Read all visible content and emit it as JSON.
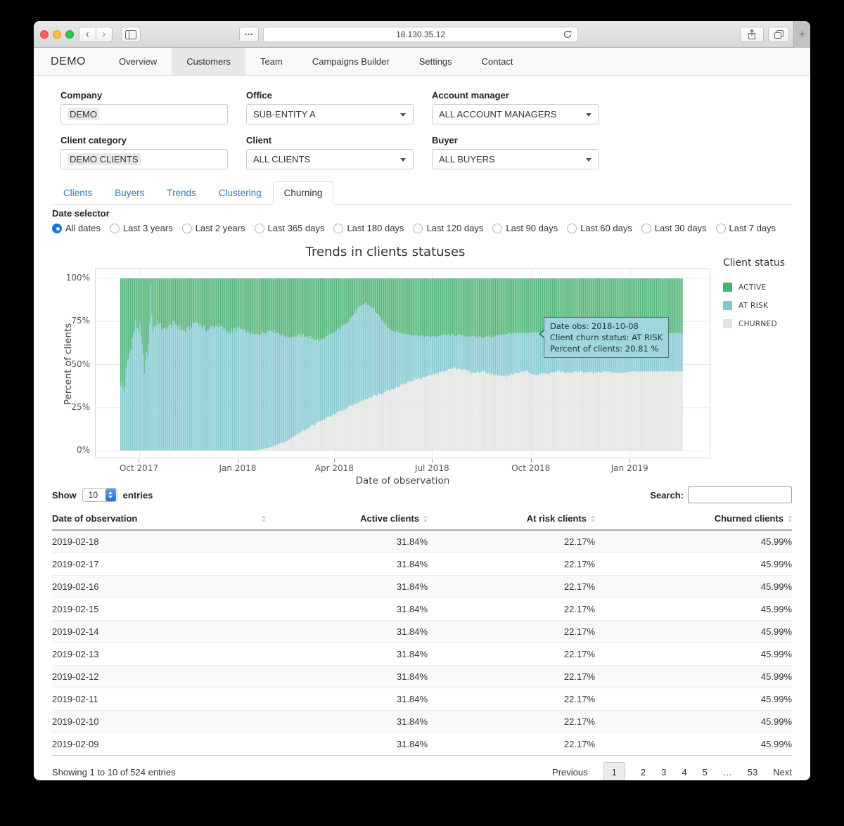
{
  "browser": {
    "url": "18.130.35.12",
    "new_tab_label": "+",
    "dots_label": "•••"
  },
  "nav": {
    "brand": "DEMO",
    "items": [
      {
        "label": "Overview",
        "active": false
      },
      {
        "label": "Customers",
        "active": true
      },
      {
        "label": "Team",
        "active": false
      },
      {
        "label": "Campaigns Builder",
        "active": false
      },
      {
        "label": "Settings",
        "active": false
      },
      {
        "label": "Contact",
        "active": false
      }
    ]
  },
  "filters": [
    {
      "label": "Company",
      "value": "DEMO",
      "type": "text",
      "highlight": true
    },
    {
      "label": "Office",
      "value": "SUB-ENTITY A",
      "type": "select"
    },
    {
      "label": "Account manager",
      "value": "ALL ACCOUNT MANAGERS",
      "type": "select"
    },
    {
      "label": "Client category",
      "value": "DEMO CLIENTS",
      "type": "text",
      "highlight": true
    },
    {
      "label": "Client",
      "value": "ALL CLIENTS",
      "type": "select"
    },
    {
      "label": "Buyer",
      "value": "ALL BUYERS",
      "type": "select"
    }
  ],
  "subtabs": [
    {
      "label": "Clients",
      "active": false
    },
    {
      "label": "Buyers",
      "active": false
    },
    {
      "label": "Trends",
      "active": false
    },
    {
      "label": "Clustering",
      "active": false
    },
    {
      "label": "Churning",
      "active": true
    }
  ],
  "date_selector": {
    "label": "Date selector",
    "selected": "All dates",
    "options": [
      "All dates",
      "Last 3 years",
      "Last 2 years",
      "Last 365 days",
      "Last 180 days",
      "Last 120 days",
      "Last 90 days",
      "Last 60 days",
      "Last 30 days",
      "Last 7 days"
    ]
  },
  "chart_data": {
    "type": "stacked-bar-100",
    "title": "Trends in clients statuses",
    "xlabel": "Date of observation",
    "ylabel": "Percent of clients",
    "y_ticks": [
      "0%",
      "25%",
      "50%",
      "75%",
      "100%"
    ],
    "x_ticks": [
      "Oct 2017",
      "Jan 2018",
      "Apr 2018",
      "Jul 2018",
      "Oct 2018",
      "Jan 2019"
    ],
    "x_tick_days": [
      18,
      110,
      200,
      291,
      383,
      475
    ],
    "n_days": 524,
    "date_range": [
      "2017-09-13",
      "2019-02-18"
    ],
    "series_order_bottom_to_top": [
      "CHURNED",
      "AT RISK",
      "ACTIVE"
    ],
    "colors": {
      "active": "#4fb477",
      "at_risk": "#85c9d1",
      "churned": "#e4e4e2",
      "grid": "#ececec"
    },
    "churned_top_keypoints": [
      [
        0,
        0
      ],
      [
        125,
        0
      ],
      [
        140,
        2
      ],
      [
        155,
        6
      ],
      [
        168,
        11
      ],
      [
        180,
        15
      ],
      [
        192,
        19
      ],
      [
        205,
        23
      ],
      [
        218,
        27
      ],
      [
        232,
        31
      ],
      [
        245,
        34
      ],
      [
        258,
        37
      ],
      [
        272,
        41
      ],
      [
        285,
        43
      ],
      [
        295,
        45
      ],
      [
        305,
        47
      ],
      [
        312,
        48
      ],
      [
        320,
        47
      ],
      [
        328,
        45
      ],
      [
        338,
        46
      ],
      [
        348,
        44
      ],
      [
        358,
        43
      ],
      [
        368,
        45
      ],
      [
        378,
        46
      ],
      [
        388,
        44
      ],
      [
        398,
        45
      ],
      [
        408,
        46
      ],
      [
        418,
        45
      ],
      [
        428,
        46
      ],
      [
        440,
        45
      ],
      [
        452,
        46
      ],
      [
        464,
        45
      ],
      [
        478,
        46
      ],
      [
        523,
        45.99
      ]
    ],
    "atrisk_top_keypoints": [
      [
        0,
        40
      ],
      [
        3,
        34
      ],
      [
        6,
        50
      ],
      [
        10,
        62
      ],
      [
        14,
        73
      ],
      [
        18,
        70
      ],
      [
        22,
        48
      ],
      [
        26,
        60
      ],
      [
        28,
        93
      ],
      [
        30,
        70
      ],
      [
        34,
        75
      ],
      [
        40,
        70
      ],
      [
        50,
        74
      ],
      [
        60,
        69
      ],
      [
        70,
        75
      ],
      [
        80,
        70
      ],
      [
        90,
        73
      ],
      [
        100,
        69
      ],
      [
        110,
        71
      ],
      [
        125,
        67
      ],
      [
        140,
        70
      ],
      [
        155,
        66
      ],
      [
        170,
        67
      ],
      [
        185,
        64
      ],
      [
        198,
        68
      ],
      [
        208,
        73
      ],
      [
        218,
        80
      ],
      [
        228,
        86
      ],
      [
        236,
        82
      ],
      [
        244,
        75
      ],
      [
        252,
        70
      ],
      [
        262,
        68
      ],
      [
        275,
        67
      ],
      [
        288,
        66
      ],
      [
        300,
        67
      ],
      [
        315,
        67
      ],
      [
        330,
        66
      ],
      [
        345,
        66
      ],
      [
        360,
        68
      ],
      [
        375,
        68
      ],
      [
        390,
        69
      ],
      [
        405,
        68
      ],
      [
        420,
        68
      ],
      [
        435,
        69
      ],
      [
        450,
        68
      ],
      [
        465,
        68
      ],
      [
        480,
        68
      ],
      [
        504,
        68
      ],
      [
        505,
        55
      ],
      [
        506,
        68
      ],
      [
        523,
        68.16
      ]
    ],
    "final_values": {
      "active": 31.84,
      "at_risk": 22.17,
      "churned": 45.99
    }
  },
  "tooltip": {
    "lines": [
      "Date obs: 2018-10-08",
      "Client churn status: AT RISK",
      "Percent of clients: 20.81 %"
    ]
  },
  "legend": {
    "title": "Client status",
    "items": [
      {
        "label": "ACTIVE",
        "color": "#43b272"
      },
      {
        "label": "AT RISK",
        "color": "#7fc8d1"
      },
      {
        "label": "CHURNED",
        "color": "#e2e2e0"
      }
    ]
  },
  "controls": {
    "show_label": "Show",
    "page_size": "10",
    "entries_label": "entries",
    "search_label": "Search:",
    "search_value": ""
  },
  "table": {
    "columns": [
      {
        "label": "Date of observation",
        "align": "left"
      },
      {
        "label": "Active clients",
        "align": "right"
      },
      {
        "label": "At risk clients",
        "align": "right"
      },
      {
        "label": "Churned clients",
        "align": "right"
      }
    ],
    "rows": [
      [
        "2019-02-18",
        "31.84%",
        "22.17%",
        "45.99%"
      ],
      [
        "2019-02-17",
        "31.84%",
        "22.17%",
        "45.99%"
      ],
      [
        "2019-02-16",
        "31.84%",
        "22.17%",
        "45.99%"
      ],
      [
        "2019-02-15",
        "31.84%",
        "22.17%",
        "45.99%"
      ],
      [
        "2019-02-14",
        "31.84%",
        "22.17%",
        "45.99%"
      ],
      [
        "2019-02-13",
        "31.84%",
        "22.17%",
        "45.99%"
      ],
      [
        "2019-02-12",
        "31.84%",
        "22.17%",
        "45.99%"
      ],
      [
        "2019-02-11",
        "31.84%",
        "22.17%",
        "45.99%"
      ],
      [
        "2019-02-10",
        "31.84%",
        "22.17%",
        "45.99%"
      ],
      [
        "2019-02-09",
        "31.84%",
        "22.17%",
        "45.99%"
      ]
    ]
  },
  "footer": {
    "info": "Showing 1 to 10 of 524 entries",
    "pagination": [
      "Previous",
      "1",
      "2",
      "3",
      "4",
      "5",
      "…",
      "53",
      "Next"
    ],
    "active_page": "1"
  }
}
